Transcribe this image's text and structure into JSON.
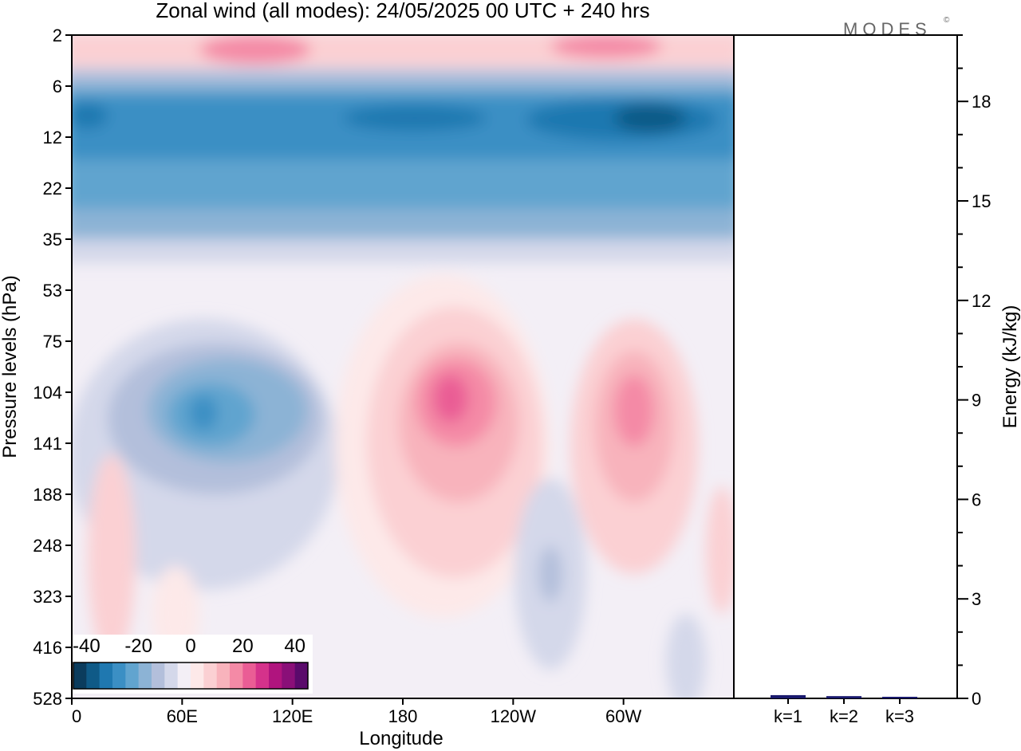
{
  "chart_data": [
    {
      "type": "heatmap",
      "title": "Zonal wind (all modes):  24/05/2025  00 UTC  + 240 hrs",
      "xlabel": "Longitude",
      "ylabel": "Pressure levels (hPa)",
      "x_ticks": [
        "0",
        "60E",
        "120E",
        "180",
        "120W",
        "60W"
      ],
      "x_tick_values": [
        0,
        60,
        120,
        180,
        240,
        300
      ],
      "x_range": [
        0,
        360
      ],
      "y_ticks": [
        "2",
        "6",
        "12",
        "22",
        "35",
        "53",
        "75",
        "104",
        "141",
        "188",
        "248",
        "323",
        "416",
        "528"
      ],
      "y_order": "2 at top, 528 at bottom, evenly spaced levels",
      "colorbar": {
        "tick_labels": [
          "-40",
          "-20",
          "0",
          "20",
          "40"
        ],
        "range": [
          -45,
          45
        ],
        "step": 5,
        "position": "bottom-left inset",
        "colors": [
          "#0b3c5d",
          "#0f5a87",
          "#1f78b0",
          "#3b8fc4",
          "#61a4cf",
          "#8cb3d5",
          "#b3bfdb",
          "#d4d8ea",
          "#f3eff6",
          "#fde9e9",
          "#fbd0d3",
          "#f8b3bc",
          "#f48aa6",
          "#ea5d95",
          "#d5328b",
          "#b0147e",
          "#8a0f78",
          "#5a0a6b"
        ]
      },
      "features": [
        {
          "name": "stratospheric easterly jet",
          "lon_range": [
            0,
            360
          ],
          "level_range": [
            6,
            35
          ],
          "peak": -40
        },
        {
          "name": "upper westerly band",
          "lon_range": [
            0,
            360
          ],
          "level_range": [
            2,
            4
          ],
          "peak": 20
        },
        {
          "name": "easterly maximum",
          "lon_range": [
            30,
            130
          ],
          "level_range": [
            75,
            248
          ],
          "peak": -30
        },
        {
          "name": "westerly maximum",
          "lon_range": [
            160,
            230
          ],
          "level_range": [
            53,
            323
          ],
          "peak": 25
        },
        {
          "name": "westerly maximum",
          "lon_range": [
            270,
            320
          ],
          "level_range": [
            75,
            248
          ],
          "peak": 20
        },
        {
          "name": "weak easterly",
          "lon_range": [
            220,
            270
          ],
          "level_range": [
            188,
            416
          ],
          "peak": -10
        }
      ]
    },
    {
      "type": "bar",
      "categories": [
        "k=1",
        "k=2",
        "k=3"
      ],
      "values": [
        0.05,
        0.02,
        0.0
      ],
      "ylabel": "Energy (kJ/kg)",
      "y_ticks": [
        "0",
        "3",
        "6",
        "9",
        "12",
        "15",
        "18"
      ],
      "ylim": [
        0,
        20
      ],
      "bar_color": "#1a1a6e"
    }
  ],
  "logo": "MODES",
  "logo_mark": "©"
}
